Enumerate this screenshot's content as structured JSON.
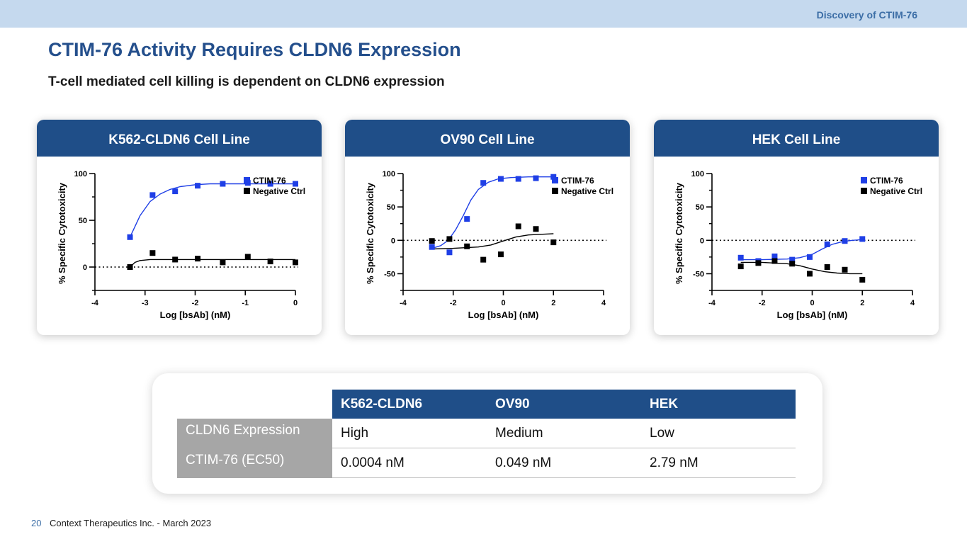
{
  "header": {
    "section": "Discovery of CTIM-76"
  },
  "title": "CTIM-76 Activity Requires CLDN6 Expression",
  "subtitle": "T-cell mediated cell killing is dependent on CLDN6 expression",
  "chart_data": [
    {
      "type": "scatter",
      "title": "K562-CLDN6 Cell Line",
      "xlabel": "Log [bsAb] (nM)",
      "ylabel": "% Specific Cytotoxicity",
      "xlim": [
        -4,
        0
      ],
      "ylim": [
        -25,
        100
      ],
      "xticks": [
        -4,
        -3,
        -2,
        -1,
        0
      ],
      "yticks": [
        0,
        50,
        100
      ],
      "legend": [
        "CTIM-76",
        "Negative Ctrl"
      ],
      "series": [
        {
          "name": "CTIM-76",
          "color": "#1f3fe6",
          "x": [
            -3.3,
            -2.85,
            -2.4,
            -1.95,
            -1.45,
            -0.95,
            -0.5,
            0
          ],
          "y": [
            32,
            77,
            81,
            87,
            89,
            90,
            89,
            89
          ]
        },
        {
          "name": "Negative Ctrl",
          "color": "#000000",
          "x": [
            -3.3,
            -2.85,
            -2.4,
            -1.95,
            -1.45,
            -0.95,
            -0.5,
            0
          ],
          "y": [
            0,
            15,
            8,
            9,
            5,
            11,
            6,
            5
          ]
        }
      ],
      "fit": [
        {
          "color": "#1f3fe6",
          "x": [
            -3.3,
            -3.1,
            -2.9,
            -2.7,
            -2.5,
            -2.3,
            -2.0,
            -1.7,
            -1.3,
            -0.9,
            -0.5,
            0
          ],
          "y": [
            32,
            55,
            70,
            78,
            83,
            86,
            88,
            89,
            89,
            89,
            89,
            89
          ]
        },
        {
          "color": "#000000",
          "x": [
            -3.3,
            -3.2,
            -3.1,
            -2.9,
            -2.5,
            -2.0,
            -1.5,
            -1.0,
            -0.5,
            0
          ],
          "y": [
            0,
            5,
            7,
            8,
            8,
            8,
            8,
            8,
            8,
            8
          ]
        }
      ],
      "baseline": 0
    },
    {
      "type": "scatter",
      "title": "OV90 Cell Line",
      "xlabel": "Log [bsAb] (nM)",
      "ylabel": "% Specific Cytotoxicity",
      "xlim": [
        -4,
        4
      ],
      "ylim": [
        -75,
        100
      ],
      "xticks": [
        -4,
        -2,
        0,
        2,
        4
      ],
      "yticks": [
        -50,
        0,
        50,
        100
      ],
      "legend": [
        "CTIM-76",
        "Negative Ctrl"
      ],
      "series": [
        {
          "name": "CTIM-76",
          "color": "#1f3fe6",
          "x": [
            -2.85,
            -2.15,
            -1.45,
            -0.8,
            -0.1,
            0.6,
            1.3,
            2.0
          ],
          "y": [
            -10,
            -18,
            32,
            86,
            92,
            92,
            93,
            95
          ]
        },
        {
          "name": "Negative Ctrl",
          "color": "#000000",
          "x": [
            -2.85,
            -2.15,
            -1.45,
            -0.8,
            -0.1,
            0.6,
            1.3,
            2.0
          ],
          "y": [
            -1,
            2,
            -9,
            -29,
            -21,
            21,
            17,
            -3
          ]
        }
      ],
      "fit": [
        {
          "color": "#1f3fe6",
          "x": [
            -2.85,
            -2.5,
            -2.2,
            -1.9,
            -1.6,
            -1.3,
            -1.0,
            -0.6,
            -0.2,
            0.3,
            1.0,
            2.0
          ],
          "y": [
            -12,
            -8,
            0,
            16,
            37,
            60,
            76,
            87,
            92,
            94,
            95,
            95
          ]
        },
        {
          "color": "#000000",
          "x": [
            -2.85,
            -2.0,
            -1.0,
            -0.5,
            0,
            0.5,
            1.0,
            1.5,
            2.0
          ],
          "y": [
            -13,
            -12,
            -10,
            -7,
            -1,
            5,
            8,
            9,
            10
          ]
        }
      ],
      "baseline": 0
    },
    {
      "type": "scatter",
      "title": "HEK Cell Line",
      "xlabel": "Log [bsAb] (nM)",
      "ylabel": "% Specific Cytotoxicity",
      "xlim": [
        -4,
        4
      ],
      "ylim": [
        -75,
        100
      ],
      "xticks": [
        -4,
        -2,
        0,
        2,
        4
      ],
      "yticks": [
        -50,
        0,
        50,
        100
      ],
      "legend": [
        "CTIM-76",
        "Negative Ctrl"
      ],
      "series": [
        {
          "name": "CTIM-76",
          "color": "#1f3fe6",
          "x": [
            -2.85,
            -2.15,
            -1.5,
            -0.8,
            -0.1,
            0.6,
            1.3,
            2.0
          ],
          "y": [
            -26,
            -31,
            -24,
            -29,
            -25,
            -6,
            -1,
            2
          ]
        },
        {
          "name": "Negative Ctrl",
          "color": "#000000",
          "x": [
            -2.85,
            -2.15,
            -1.5,
            -0.8,
            -0.1,
            0.6,
            1.3,
            2.0
          ],
          "y": [
            -39,
            -34,
            -31,
            -35,
            -50,
            -40,
            -44,
            -59
          ]
        }
      ],
      "fit": [
        {
          "color": "#1f3fe6",
          "x": [
            -2.85,
            -2.0,
            -1.0,
            -0.5,
            0,
            0.4,
            0.8,
            1.2,
            1.6,
            2.0
          ],
          "y": [
            -29,
            -29,
            -28,
            -26,
            -21,
            -13,
            -6,
            -2,
            0,
            1
          ]
        },
        {
          "color": "#000000",
          "x": [
            -2.85,
            -2.0,
            -1.0,
            -0.5,
            0,
            0.5,
            1.0,
            1.5,
            2.0
          ],
          "y": [
            -33,
            -33,
            -35,
            -38,
            -43,
            -47,
            -49,
            -50,
            -50
          ]
        }
      ],
      "baseline": 0
    }
  ],
  "table": {
    "columns": [
      "K562-CLDN6",
      "OV90",
      "HEK"
    ],
    "rows": [
      {
        "label": "CLDN6 Expression",
        "values": [
          "High",
          "Medium",
          "Low"
        ]
      },
      {
        "label": "CTIM-76 (EC50)",
        "values": [
          "0.0004 nM",
          "0.049 nM",
          "2.79 nM"
        ]
      }
    ]
  },
  "footer": {
    "page": "20",
    "text": "Context Therapeutics Inc. - March 2023"
  }
}
